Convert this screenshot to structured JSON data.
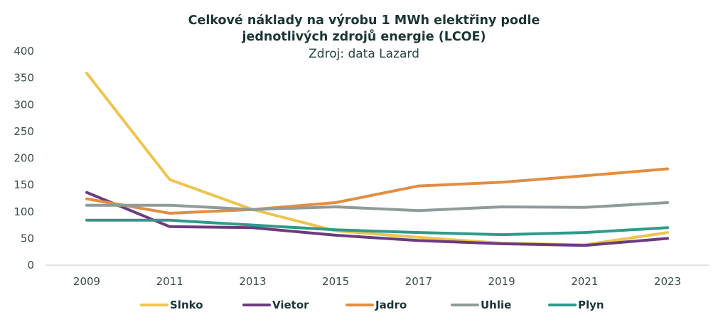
{
  "chart_data": {
    "type": "line",
    "title_line1": "Celkové náklady na výrobu 1 MWh elektřiny podle",
    "title_line2": "jednotlivých zdrojů energie (LCOE)",
    "subtitle": "Zdroj: data Lazard",
    "xlabel": "",
    "ylabel": "",
    "x": [
      "2009",
      "2011",
      "2013",
      "2015",
      "2017",
      "2019",
      "2021",
      "2023"
    ],
    "ylim": [
      0,
      400
    ],
    "yticks": [
      "0",
      "50",
      "100",
      "150",
      "200",
      "250",
      "300",
      "350",
      "400"
    ],
    "grid": false,
    "legend_position": "bottom",
    "series": [
      {
        "name": "Slnko",
        "color": "#ecc550",
        "values": [
          359,
          160,
          104,
          64,
          52,
          41,
          38,
          61
        ]
      },
      {
        "name": "Vietor",
        "color": "#6c3b7e",
        "values": [
          136,
          72,
          70,
          56,
          46,
          40,
          37,
          50
        ]
      },
      {
        "name": "Jadro",
        "color": "#e08e45",
        "values": [
          124,
          97,
          104,
          117,
          148,
          155,
          167,
          180
        ]
      },
      {
        "name": "Uhlie",
        "color": "#8f9b9a",
        "values": [
          112,
          112,
          104,
          109,
          102,
          109,
          108,
          117
        ]
      },
      {
        "name": "Plyn",
        "color": "#2e9a8a",
        "values": [
          84,
          84,
          75,
          66,
          61,
          57,
          61,
          70
        ]
      }
    ]
  }
}
